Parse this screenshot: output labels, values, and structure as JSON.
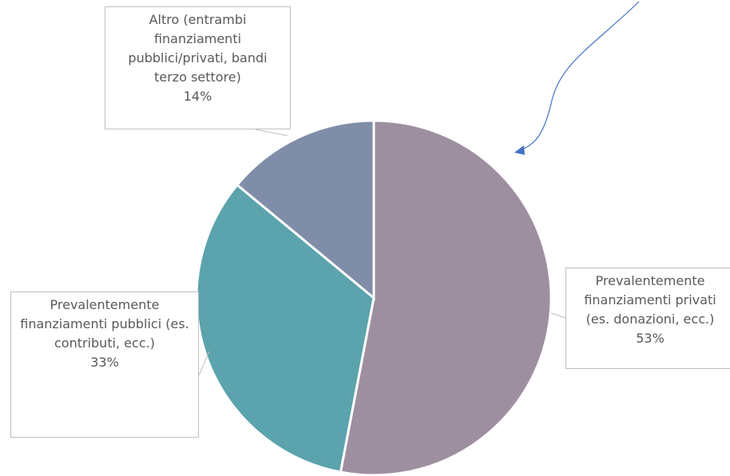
{
  "chart_data": {
    "type": "pie",
    "categories": [
      "Prevalentemente finanziamenti privati (es. donazioni, ecc.)",
      "Prevalentemente finanziamenti pubblici (es. contributi, ecc.)",
      "Altro (entrambi finanziamenti pubblici/privati, bandi terzo settore)"
    ],
    "values": [
      53,
      33,
      14
    ],
    "value_labels": [
      "53%",
      "33%",
      "14%"
    ],
    "colors": [
      "#9e8fa0",
      "#5ba3ad",
      "#7f8da8"
    ]
  }
}
